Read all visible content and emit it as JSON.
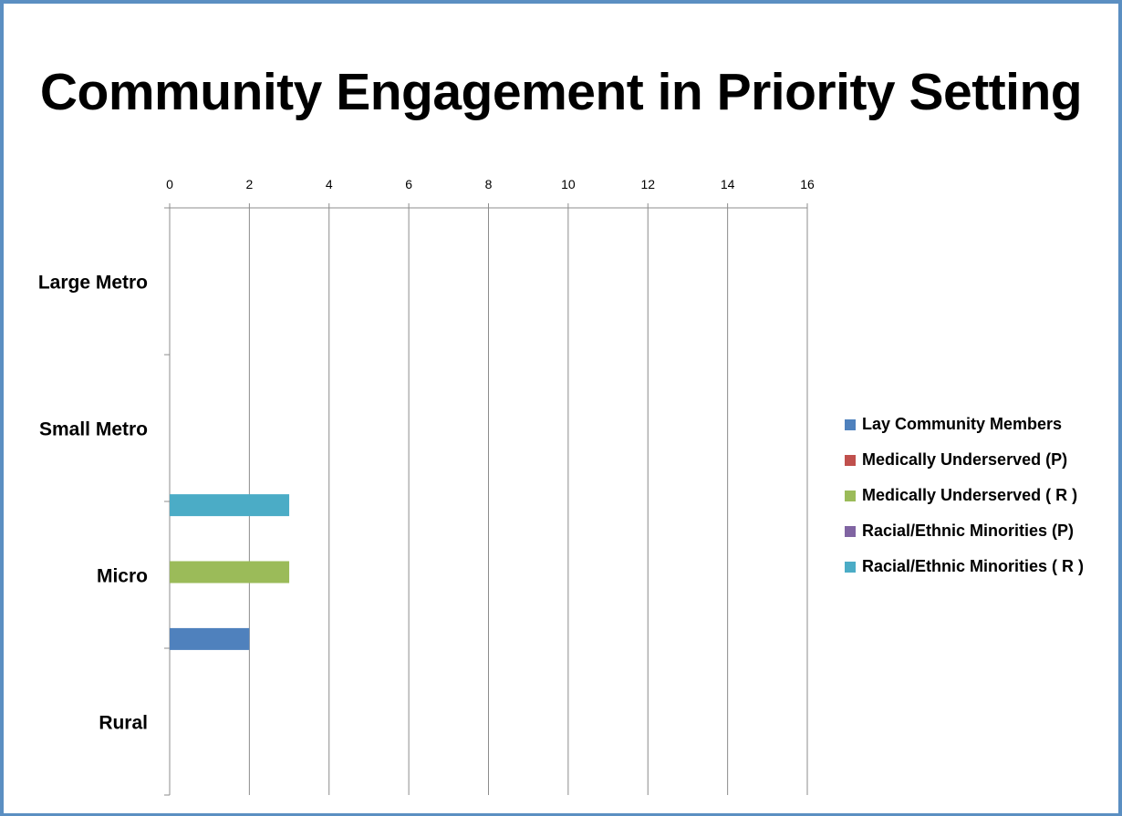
{
  "chart_data": {
    "type": "bar",
    "orientation": "horizontal",
    "title": "Community Engagement in Priority Setting",
    "categories": [
      "Large Metro",
      "Small Metro",
      "Micro",
      "Rural"
    ],
    "xlim": [
      0,
      16
    ],
    "x_ticks": [
      0,
      2,
      4,
      6,
      8,
      10,
      12,
      14,
      16
    ],
    "x_axis_position": "top",
    "grid": true,
    "legend_position": "right",
    "series": [
      {
        "name": "Lay Community Members",
        "color": "#4f81bd",
        "values": [
          0,
          0,
          2,
          0
        ]
      },
      {
        "name": "Medically Underserved (P)",
        "color": "#c0504d",
        "values": [
          0,
          0,
          0,
          0
        ]
      },
      {
        "name": "Medically Underserved ( R )",
        "color": "#9bbb59",
        "values": [
          0,
          0,
          3,
          0
        ]
      },
      {
        "name": "Racial/Ethnic Minorities (P)",
        "color": "#8064a2",
        "values": [
          0,
          0,
          0,
          0
        ]
      },
      {
        "name": "Racial/Ethnic Minorities ( R )",
        "color": "#4bacc6",
        "values": [
          0,
          0,
          3,
          0
        ]
      }
    ]
  }
}
